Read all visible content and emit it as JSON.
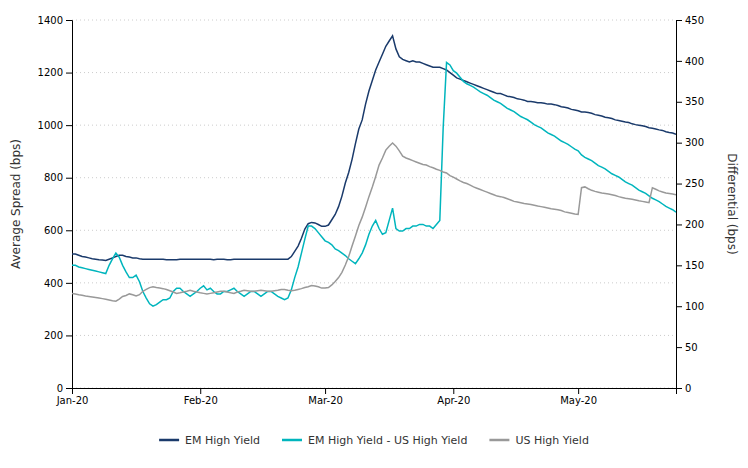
{
  "chart_data": {
    "type": "line",
    "ylabel": "Average Spread (bps)",
    "y2label": "Differential (bps)",
    "ylim": [
      0,
      1400
    ],
    "yticks": [
      0,
      200,
      400,
      600,
      800,
      1000,
      1200,
      1400
    ],
    "y2lim": [
      0,
      450
    ],
    "y2ticks": [
      0,
      50,
      100,
      150,
      200,
      250,
      300,
      350,
      400,
      450
    ],
    "grid": true,
    "legend": "bottom",
    "categories": [
      "Jan-20",
      null,
      null,
      null,
      null,
      null,
      null,
      null,
      null,
      null,
      null,
      null,
      null,
      null,
      null,
      null,
      null,
      null,
      null,
      null,
      null,
      null,
      null,
      null,
      null,
      null,
      null,
      null,
      null,
      null,
      null,
      null,
      null,
      null,
      null,
      null,
      null,
      null,
      "Feb-20",
      null,
      null,
      null,
      null,
      null,
      null,
      null,
      null,
      null,
      null,
      null,
      null,
      null,
      null,
      null,
      null,
      null,
      null,
      null,
      null,
      null,
      null,
      null,
      null,
      null,
      null,
      null,
      null,
      null,
      null,
      null,
      null,
      null,
      null,
      null,
      null,
      "Mar-20",
      null,
      null,
      null,
      null,
      null,
      null,
      null,
      null,
      null,
      null,
      null,
      null,
      null,
      null,
      null,
      null,
      null,
      null,
      null,
      null,
      null,
      null,
      null,
      null,
      null,
      null,
      null,
      null,
      null,
      null,
      null,
      null,
      null,
      null,
      null,
      null,
      null,
      "Apr-20",
      null,
      null,
      null,
      null,
      null,
      null,
      null,
      null,
      null,
      null,
      null,
      null,
      null,
      null,
      null,
      null,
      null,
      null,
      null,
      null,
      null,
      null,
      null,
      null,
      null,
      null,
      null,
      null,
      null,
      null,
      null,
      null,
      null,
      null,
      null,
      null,
      "May-20",
      null,
      null,
      null,
      null,
      null,
      null,
      null,
      null,
      null,
      null,
      null,
      null,
      null,
      null,
      null,
      null,
      null,
      null,
      null,
      null,
      null,
      null,
      null,
      null,
      null,
      null,
      null,
      null,
      null
    ],
    "series": [
      {
        "name": "EM High Yield",
        "color": "#1a3a6b",
        "values": [
          510,
          510,
          505,
          500,
          498,
          495,
          492,
          490,
          488,
          487,
          485,
          490,
          495,
          500,
          505,
          505,
          500,
          498,
          495,
          495,
          492,
          490,
          490,
          490,
          490,
          490,
          490,
          490,
          488,
          488,
          488,
          488,
          490,
          490,
          490,
          490,
          490,
          490,
          490,
          490,
          490,
          490,
          488,
          490,
          490,
          490,
          488,
          488,
          490,
          490,
          490,
          490,
          490,
          490,
          490,
          490,
          490,
          490,
          490,
          490,
          490,
          490,
          490,
          490,
          490,
          500,
          520,
          540,
          570,
          605,
          625,
          630,
          628,
          622,
          615,
          615,
          620,
          640,
          660,
          690,
          730,
          780,
          820,
          870,
          930,
          985,
          1020,
          1080,
          1130,
          1170,
          1210,
          1240,
          1270,
          1300,
          1320,
          1340,
          1290,
          1260,
          1250,
          1245,
          1240,
          1245,
          1240,
          1240,
          1235,
          1230,
          1225,
          1220,
          1220,
          1220,
          1215,
          1210,
          1200,
          1190,
          1180,
          1175,
          1170,
          1165,
          1160,
          1155,
          1150,
          1145,
          1140,
          1135,
          1130,
          1125,
          1120,
          1120,
          1115,
          1110,
          1108,
          1105,
          1100,
          1098,
          1095,
          1090,
          1090,
          1088,
          1085,
          1085,
          1083,
          1080,
          1080,
          1078,
          1075,
          1070,
          1068,
          1065,
          1060,
          1058,
          1055,
          1050,
          1050,
          1048,
          1045,
          1040,
          1038,
          1035,
          1030,
          1028,
          1025,
          1020,
          1018,
          1015,
          1012,
          1010,
          1005,
          1002,
          1000,
          998,
          995,
          990,
          988,
          985,
          982,
          980,
          975,
          972,
          970,
          965
        ]
      },
      {
        "name": "EM High Yield - US High Yield",
        "color": "#00b5bd",
        "axis": "y2",
        "values": [
          150,
          150,
          148,
          147,
          146,
          145,
          144,
          143,
          142,
          141,
          140,
          150,
          158,
          165,
          160,
          150,
          142,
          135,
          135,
          138,
          130,
          118,
          110,
          103,
          100,
          102,
          105,
          108,
          108,
          110,
          118,
          122,
          122,
          118,
          115,
          112,
          115,
          118,
          122,
          125,
          120,
          122,
          118,
          115,
          115,
          118,
          118,
          120,
          122,
          118,
          115,
          112,
          115,
          118,
          118,
          115,
          112,
          115,
          118,
          118,
          115,
          112,
          110,
          108,
          110,
          120,
          135,
          148,
          165,
          182,
          198,
          198,
          195,
          190,
          185,
          180,
          178,
          175,
          170,
          168,
          165,
          162,
          158,
          155,
          152,
          158,
          165,
          175,
          188,
          198,
          205,
          195,
          188,
          190,
          205,
          220,
          195,
          192,
          192,
          195,
          195,
          198,
          198,
          200,
          200,
          198,
          198,
          195,
          200,
          205,
          318,
          398,
          395,
          388,
          385,
          380,
          375,
          372,
          370,
          368,
          365,
          362,
          360,
          358,
          355,
          352,
          350,
          348,
          345,
          342,
          340,
          338,
          335,
          332,
          330,
          328,
          325,
          322,
          320,
          318,
          315,
          312,
          310,
          308,
          305,
          302,
          300,
          298,
          295,
          292,
          290,
          285,
          282,
          280,
          278,
          275,
          272,
          270,
          268,
          265,
          262,
          260,
          258,
          255,
          252,
          250,
          248,
          245,
          242,
          240,
          238,
          235,
          232,
          230,
          228,
          225,
          222,
          220,
          218,
          215
        ]
      },
      {
        "name": "US High Yield",
        "color": "#999999",
        "values": [
          360,
          358,
          355,
          353,
          350,
          348,
          346,
          344,
          342,
          340,
          338,
          335,
          332,
          330,
          338,
          348,
          352,
          358,
          355,
          350,
          355,
          368,
          375,
          382,
          385,
          382,
          380,
          378,
          375,
          370,
          365,
          360,
          362,
          365,
          368,
          372,
          368,
          365,
          362,
          360,
          358,
          360,
          362,
          365,
          368,
          368,
          365,
          362,
          360,
          365,
          368,
          372,
          370,
          368,
          368,
          370,
          372,
          370,
          368,
          368,
          370,
          372,
          375,
          375,
          372,
          370,
          372,
          375,
          378,
          382,
          385,
          390,
          388,
          385,
          380,
          380,
          382,
          392,
          405,
          420,
          440,
          468,
          500,
          540,
          578,
          618,
          650,
          688,
          728,
          765,
          805,
          848,
          875,
          905,
          920,
          932,
          920,
          902,
          882,
          875,
          870,
          865,
          860,
          855,
          850,
          848,
          842,
          838,
          832,
          828,
          822,
          818,
          808,
          802,
          795,
          788,
          782,
          778,
          772,
          765,
          760,
          755,
          750,
          745,
          740,
          735,
          730,
          728,
          725,
          720,
          715,
          710,
          708,
          705,
          702,
          700,
          698,
          695,
          692,
          690,
          688,
          685,
          682,
          680,
          678,
          675,
          670,
          668,
          665,
          662,
          660,
          762,
          765,
          758,
          752,
          748,
          745,
          742,
          740,
          738,
          735,
          732,
          728,
          725,
          722,
          720,
          718,
          715,
          712,
          710,
          708,
          705,
          762,
          756,
          750,
          746,
          742,
          740,
          738,
          735
        ]
      }
    ]
  }
}
